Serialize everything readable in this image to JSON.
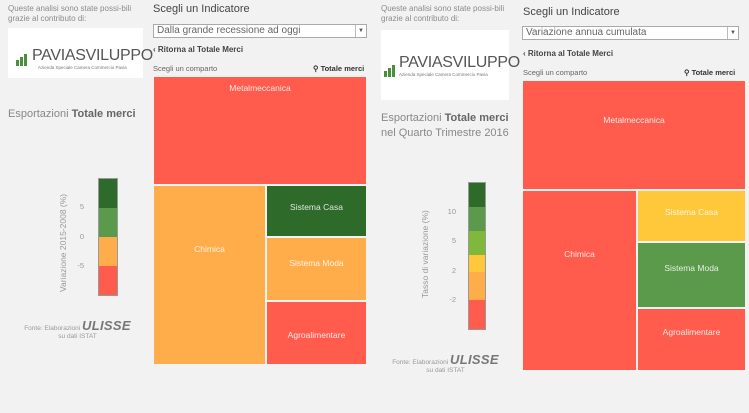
{
  "colors": {
    "red": "#ff5c4d",
    "orange": "#ffad4a",
    "yellow": "#ffc83a",
    "lightgreen": "#7fb83a",
    "green": "#5a9a4a",
    "darkgreen": "#2e6b2a"
  },
  "panels": [
    {
      "intro": "Queste analisi sono state possi-bili grazie al contributo di:",
      "logo": {
        "text": "PAVIASVILUPPO",
        "sub": "Azienda Speciale Camera Commercio Pavia"
      },
      "heading": {
        "pre": "Esportazioni ",
        "bold": "Totale merci",
        "post": ""
      },
      "ylabel": "Variazione 2015-2008 (%)",
      "ticks": [
        "5",
        "0",
        "-5"
      ],
      "source": {
        "line1": "Fonte: Elaborazioni",
        "brand": "ULISSE",
        "line2": "su dati ISTAT"
      },
      "selector_title": "Scegli un Indicatore",
      "selector_value": "Dalla grande recessione ad oggi",
      "back": "Ritorna al Totale Merci",
      "comparto": "Scegli un comparto",
      "total": "Totale merci",
      "cells": [
        "Metalmeccanica",
        "Chimica",
        "Sistema Casa",
        "Sistema Moda",
        "Agroalimentare"
      ]
    },
    {
      "intro": "Queste analisi sono state possi-bili grazie al contributo di:",
      "logo": {
        "text": "PAVIASVILUPPO",
        "sub": "Azienda Speciale Camera Commercio Pavia"
      },
      "heading": {
        "pre": "Esportazioni ",
        "bold": "Totale merci",
        "post": "nel Quarto Trimestre 2016"
      },
      "ylabel": "Tasso di variazione (%)",
      "ticks": [
        "10",
        "5",
        "2",
        "-2"
      ],
      "source": {
        "line1": "Fonte: Elaborazioni",
        "brand": "ULISSE",
        "line2": "su dati ISTAT"
      },
      "selector_title": "Scegli un Indicatore",
      "selector_value": "Variazione annua cumulata",
      "back": "Ritorna al Totale Merci",
      "comparto": "Scegli un comparto",
      "total": "Totale merci",
      "cells": [
        "Metalmeccanica",
        "Chimica",
        "Sistema Casa",
        "Sistema Moda",
        "Agroalimentare"
      ]
    }
  ]
}
